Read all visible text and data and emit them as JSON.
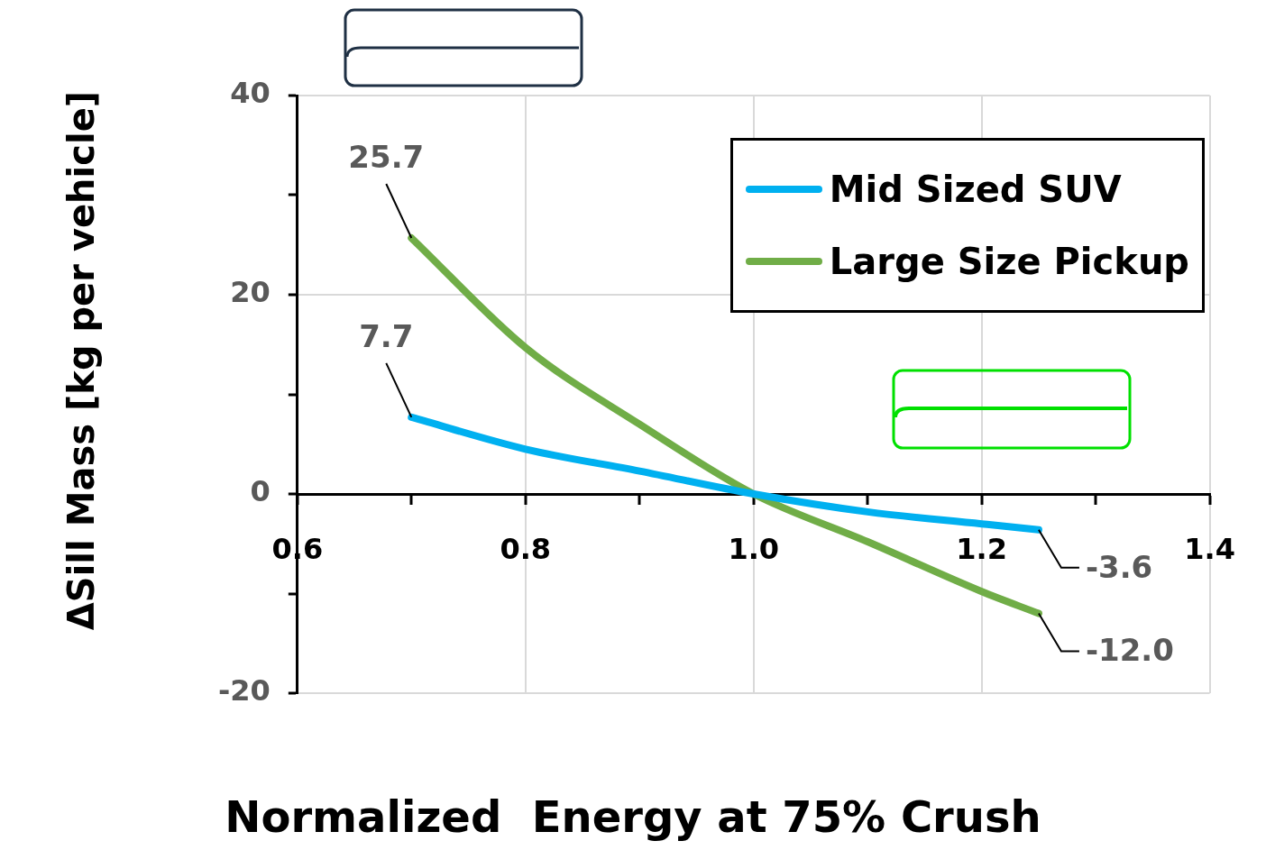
{
  "chart_data": {
    "type": "line",
    "xlabel": "Normalized  Energy at 75% Crush",
    "ylabel": "ΔSill Mass [kg per vehicle]",
    "xlim": [
      0.6,
      1.4
    ],
    "ylim": [
      -20,
      40
    ],
    "xticks": [
      {
        "value": 0.6,
        "label": "0.6"
      },
      {
        "value": 0.7,
        "label": null
      },
      {
        "value": 0.8,
        "label": "0.8"
      },
      {
        "value": 0.9,
        "label": null
      },
      {
        "value": 1.0,
        "label": "1.0"
      },
      {
        "value": 1.1,
        "label": null
      },
      {
        "value": 1.2,
        "label": "1.2"
      },
      {
        "value": 1.3,
        "label": null
      },
      {
        "value": 1.4,
        "label": "1.4"
      }
    ],
    "yticks": [
      -20,
      {
        "value": -10,
        "label": null
      },
      0,
      {
        "value": 10,
        "label": null
      },
      20,
      {
        "value": 30,
        "label": null
      },
      40
    ],
    "grid": true,
    "legend": "top right",
    "marker": "none",
    "series": [
      {
        "name": "Mid Sized SUV",
        "color": "#00b0f0",
        "x": [
          0.7,
          0.8,
          0.9,
          1.0,
          1.1,
          1.2,
          1.25
        ],
        "values": [
          7.7,
          4.5,
          2.3,
          0,
          -1.8,
          -3.0,
          -3.6
        ],
        "value_labels": [
          "7.7",
          null,
          null,
          null,
          null,
          null,
          "-3.6"
        ]
      },
      {
        "name": "Large Size Pickup",
        "color": "#70ad47",
        "x": [
          0.7,
          0.8,
          0.9,
          1.0,
          1.1,
          1.2,
          1.25
        ],
        "values": [
          25.7,
          14.7,
          7.0,
          0,
          -4.8,
          -9.8,
          -12.0
        ],
        "value_labels": [
          "25.7",
          null,
          null,
          null,
          null,
          null,
          "-12.0"
        ]
      }
    ]
  }
}
